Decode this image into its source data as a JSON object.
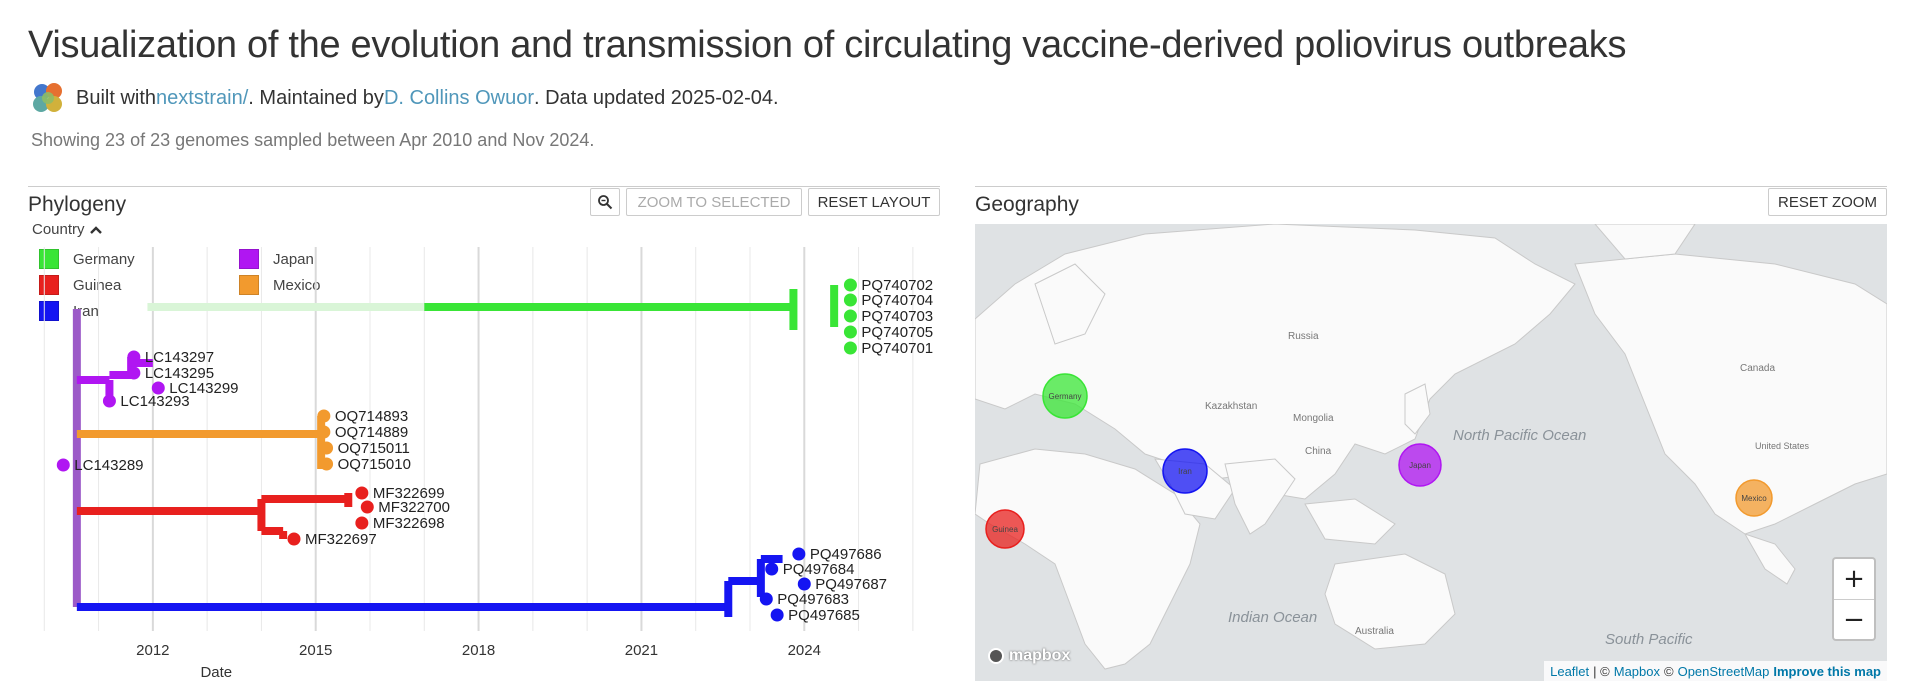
{
  "header": {
    "title": "Visualization of the evolution and transmission of circulating vaccine-derived poliovirus outbreaks",
    "built_with": "Built with ",
    "nextstrain_link": "nextstrain/",
    "maintained_by": ". Maintained by ",
    "maintainer_link": "D. Collins Owuor",
    "data_updated": ". Data updated 2025-02-04.",
    "summary": "Showing 23 of 23 genomes sampled between Apr 2010 and Nov 2024."
  },
  "phylogeny": {
    "title": "Phylogeny",
    "search_icon": "zoom-icon",
    "zoom_to_selected": "ZOOM TO SELECTED",
    "reset_layout": "RESET LAYOUT",
    "legend_title": "Country",
    "legend_toggle_icon": "chevron-up-icon",
    "legend": [
      {
        "label": "Germany",
        "color": "#39e536"
      },
      {
        "label": "Japan",
        "color": "#b016f2"
      },
      {
        "label": "Guinea",
        "color": "#e8201e"
      },
      {
        "label": "Mexico",
        "color": "#f29a2e"
      },
      {
        "label": "Iran",
        "color": "#1515f2"
      }
    ],
    "x_label": "Date",
    "x_ticks": [
      "2012",
      "2015",
      "2018",
      "2021",
      "2024"
    ]
  },
  "chart_data": {
    "type": "scatter",
    "title": "Phylogeny",
    "xlabel": "Date",
    "ylabel": "",
    "xlim": [
      2009.7,
      2026.5
    ],
    "x_tick_values": [
      2012,
      2015,
      2018,
      2021,
      2024
    ],
    "series": [
      {
        "name": "Germany",
        "color": "#39e536",
        "tips": [
          {
            "label": "PQ740702",
            "x": 2024.85
          },
          {
            "label": "PQ740704",
            "x": 2024.85
          },
          {
            "label": "PQ740703",
            "x": 2024.85
          },
          {
            "label": "PQ740705",
            "x": 2024.85
          },
          {
            "label": "PQ740701",
            "x": 2024.85
          }
        ]
      },
      {
        "name": "Japan",
        "color": "#b016f2",
        "tips": [
          {
            "label": "LC143297",
            "x": 2011.65
          },
          {
            "label": "LC143295",
            "x": 2011.65
          },
          {
            "label": "LC143299",
            "x": 2012.1
          },
          {
            "label": "LC143293",
            "x": 2011.2
          },
          {
            "label": "LC143289",
            "x": 2010.35
          }
        ]
      },
      {
        "name": "Mexico",
        "color": "#f29a2e",
        "tips": [
          {
            "label": "OQ714893",
            "x": 2015.15
          },
          {
            "label": "OQ714889",
            "x": 2015.15
          },
          {
            "label": "OQ715011",
            "x": 2015.2
          },
          {
            "label": "OQ715010",
            "x": 2015.2
          }
        ]
      },
      {
        "name": "Guinea",
        "color": "#e8201e",
        "tips": [
          {
            "label": "MF322699",
            "x": 2015.85
          },
          {
            "label": "MF322700",
            "x": 2015.95
          },
          {
            "label": "MF322698",
            "x": 2015.85
          },
          {
            "label": "MF322697",
            "x": 2014.6
          }
        ]
      },
      {
        "name": "Iran",
        "color": "#1515f2",
        "tips": [
          {
            "label": "PQ497686",
            "x": 2023.9
          },
          {
            "label": "PQ497684",
            "x": 2023.4
          },
          {
            "label": "PQ497687",
            "x": 2024.0
          },
          {
            "label": "PQ497683",
            "x": 2023.3
          },
          {
            "label": "PQ497685",
            "x": 2023.5
          }
        ]
      }
    ]
  },
  "geography": {
    "title": "Geography",
    "reset_zoom": "RESET ZOOM",
    "labels": {
      "russia": "Russia",
      "canada": "Canada",
      "china": "China",
      "mongolia": "Mongolia",
      "kazakhstan": "Kazakhstan",
      "north_pacific": "North Pacific Ocean",
      "indian_ocean": "Indian Ocean",
      "south_pacific": "South Pacific",
      "australia": "Australia",
      "united_states": "United States"
    },
    "circles": [
      {
        "name": "Germany",
        "color": "#39e536"
      },
      {
        "name": "Iran",
        "color": "#1515f2"
      },
      {
        "name": "Japan",
        "color": "#b016f2"
      },
      {
        "name": "Mexico",
        "color": "#f29a2e"
      },
      {
        "name": "Guinea",
        "color": "#e8201e"
      }
    ],
    "zoom_in": "+",
    "zoom_out": "−",
    "mapbox_label": "mapbox",
    "attribution": {
      "leaflet": "Leaflet",
      "sep": "| ©",
      "mapbox": "Mapbox",
      "copy": "©",
      "osm": "OpenStreetMap",
      "improve": "Improve this map"
    }
  }
}
